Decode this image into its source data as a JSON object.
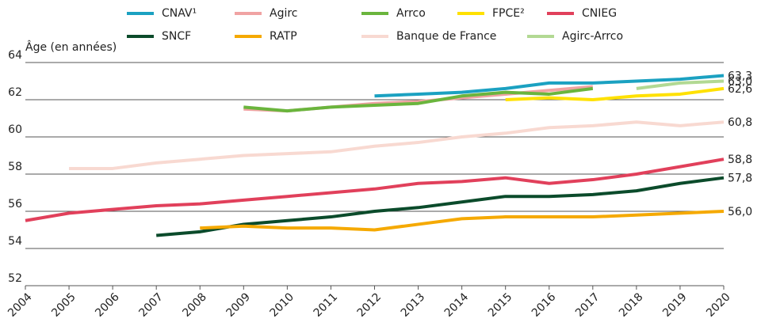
{
  "chart_data": {
    "type": "line",
    "y_label": "Âge (en années)",
    "x": [
      2004,
      2005,
      2006,
      2007,
      2008,
      2009,
      2010,
      2011,
      2012,
      2013,
      2014,
      2015,
      2016,
      2017,
      2018,
      2019,
      2020
    ],
    "xlim": [
      2004,
      2020
    ],
    "xticks": [
      2004,
      2005,
      2006,
      2007,
      2008,
      2009,
      2010,
      2011,
      2012,
      2013,
      2014,
      2015,
      2016,
      2017,
      2018,
      2019,
      2020
    ],
    "ylim": [
      52,
      64
    ],
    "yticks": [
      52,
      54,
      56,
      58,
      60,
      62,
      64
    ],
    "grid": true,
    "legend": "top",
    "series": [
      {
        "name": "CNAV¹",
        "color": "#1ba1c1",
        "values": [
          null,
          null,
          null,
          null,
          null,
          null,
          null,
          null,
          62.2,
          62.3,
          62.4,
          62.6,
          62.9,
          62.9,
          63.0,
          63.1,
          63.3
        ],
        "value_labels": [
          null,
          null,
          null,
          null,
          null,
          null,
          null,
          null,
          null,
          null,
          null,
          null,
          null,
          null,
          null,
          null,
          "63,3"
        ]
      },
      {
        "name": "Agirc",
        "color": "#f0a3a3",
        "values": [
          null,
          null,
          null,
          null,
          null,
          61.5,
          61.4,
          61.6,
          61.8,
          61.9,
          62.1,
          62.3,
          62.5,
          62.7,
          null,
          null,
          null
        ]
      },
      {
        "name": "Arrco",
        "color": "#6ab53d",
        "values": [
          null,
          null,
          null,
          null,
          null,
          61.6,
          61.4,
          61.6,
          61.7,
          61.8,
          62.2,
          62.4,
          62.3,
          62.6,
          null,
          null,
          null
        ]
      },
      {
        "name": "FPCE²",
        "color": "#ffe100",
        "values": [
          null,
          null,
          null,
          null,
          null,
          null,
          null,
          null,
          null,
          null,
          null,
          62.0,
          62.1,
          62.0,
          62.2,
          62.3,
          62.6
        ],
        "value_labels": [
          null,
          null,
          null,
          null,
          null,
          null,
          null,
          null,
          null,
          null,
          null,
          null,
          null,
          null,
          null,
          null,
          "62,6"
        ]
      },
      {
        "name": "CNIEG",
        "color": "#e1405b",
        "values": [
          55.5,
          55.9,
          56.1,
          56.3,
          56.4,
          56.6,
          56.8,
          57.0,
          57.2,
          57.5,
          57.6,
          57.8,
          57.5,
          57.7,
          58.0,
          58.4,
          58.8
        ],
        "value_labels": [
          null,
          null,
          null,
          null,
          null,
          null,
          null,
          null,
          null,
          null,
          null,
          null,
          null,
          null,
          null,
          null,
          "58,8"
        ]
      },
      {
        "name": "SNCF",
        "color": "#0b4b2b",
        "values": [
          null,
          null,
          null,
          54.7,
          54.9,
          55.3,
          55.5,
          55.7,
          56.0,
          56.2,
          56.5,
          56.8,
          56.8,
          56.9,
          57.1,
          57.5,
          57.8
        ],
        "value_labels": [
          null,
          null,
          null,
          null,
          null,
          null,
          null,
          null,
          null,
          null,
          null,
          null,
          null,
          null,
          null,
          null,
          "57,8"
        ]
      },
      {
        "name": "RATP",
        "color": "#f5a900",
        "values": [
          null,
          null,
          null,
          null,
          55.1,
          55.2,
          55.1,
          55.1,
          55.0,
          55.3,
          55.6,
          55.7,
          55.7,
          55.7,
          55.8,
          55.9,
          56.0
        ],
        "value_labels": [
          null,
          null,
          null,
          null,
          null,
          null,
          null,
          null,
          null,
          null,
          null,
          null,
          null,
          null,
          null,
          null,
          "56,0"
        ]
      },
      {
        "name": "Banque de France",
        "color": "#f8d9d1",
        "values": [
          null,
          58.3,
          58.3,
          58.6,
          58.8,
          59.0,
          59.1,
          59.2,
          59.5,
          59.7,
          60.0,
          60.2,
          60.5,
          60.6,
          60.8,
          60.6,
          60.8
        ],
        "value_labels": [
          null,
          null,
          null,
          null,
          null,
          null,
          null,
          null,
          null,
          null,
          null,
          null,
          null,
          null,
          null,
          null,
          "60,8"
        ]
      },
      {
        "name": "Agirc-Arrco",
        "color": "#b2d993",
        "values": [
          null,
          null,
          null,
          null,
          null,
          null,
          null,
          null,
          null,
          null,
          null,
          null,
          null,
          null,
          62.6,
          62.9,
          63.0
        ],
        "value_labels": [
          null,
          null,
          null,
          null,
          null,
          null,
          null,
          null,
          null,
          null,
          null,
          null,
          null,
          null,
          null,
          null,
          "63,0"
        ]
      }
    ]
  }
}
